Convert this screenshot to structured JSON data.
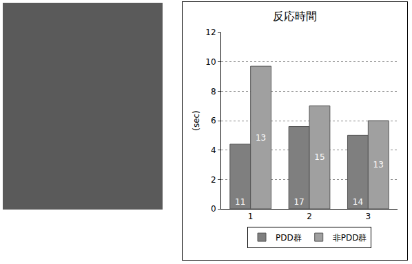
{
  "chart_data": {
    "type": "bar",
    "title": "反応時間",
    "y_label": "(sec)",
    "categories": [
      "1",
      "2",
      "3"
    ],
    "series": [
      {
        "name": "PDD群",
        "color": "#7f7f7f",
        "values": [
          4.4,
          5.6,
          5.0
        ],
        "n": [
          11,
          17,
          14
        ]
      },
      {
        "name": "非PDD群",
        "color": "#a0a0a0",
        "values": [
          9.7,
          7.0,
          6.0
        ],
        "n": [
          13,
          15,
          13
        ]
      }
    ],
    "ylim": [
      0,
      12
    ],
    "yticks": [
      0,
      2,
      4,
      6,
      8,
      10,
      12
    ],
    "grid": true,
    "legend": "bottom"
  }
}
